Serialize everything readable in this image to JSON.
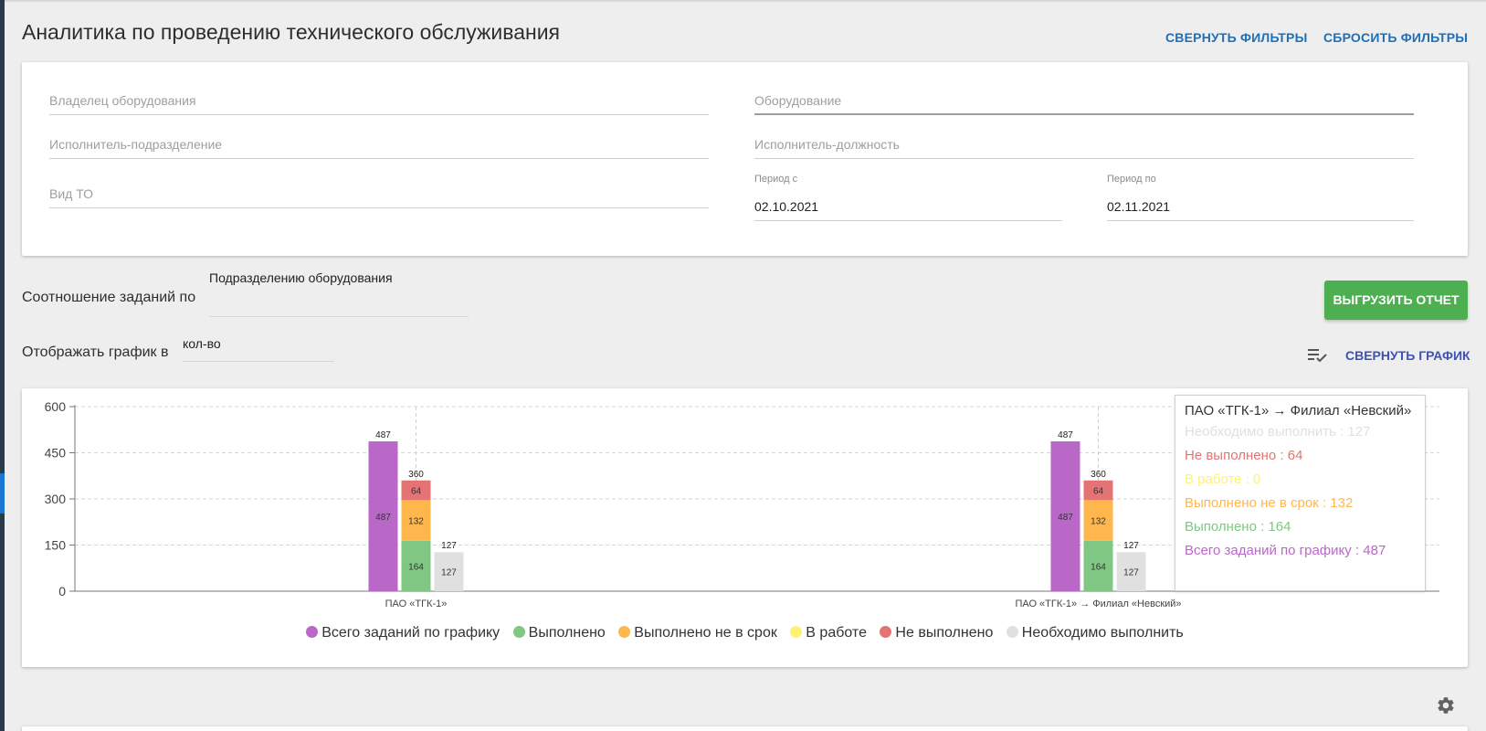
{
  "header": {
    "title": "Аналитика по проведению технического обслуживания",
    "collapse_filters": "СВЕРНУТЬ ФИЛЬТРЫ",
    "reset_filters": "СБРОСИТЬ ФИЛЬТРЫ"
  },
  "filters": {
    "owner_placeholder": "Владелец оборудования",
    "equipment_placeholder": "Оборудование",
    "executor_dept_placeholder": "Исполнитель-подразделение",
    "executor_pos_placeholder": "Исполнитель-должность",
    "type_placeholder": "Вид ТО",
    "period_from_label": "Период с",
    "period_from_value": "02.10.2021",
    "period_to_label": "Период по",
    "period_to_value": "02.11.2021"
  },
  "controls": {
    "ratio_label": "Соотношение заданий по",
    "ratio_value": "Подразделению оборудования",
    "display_label": "Отображать график в",
    "display_value": "кол-во",
    "export_button": "ВЫГРУЗИТЬ ОТЧЕТ",
    "collapse_chart": "СВЕРНУТЬ ГРАФИК",
    "list_check_icon": "playlist-check-icon",
    "settings_icon": "gear-icon"
  },
  "colors": {
    "total": "#ba68c8",
    "done": "#81c784",
    "late": "#ffb74d",
    "in_work": "#fff176",
    "not_done": "#e57373",
    "required": "#e0e0e0",
    "accent_green": "#4caf50",
    "link_blue": "#1e6fb8"
  },
  "tooltip": {
    "title": "ПАО «ТГК-1» → Филиал «Невский»",
    "rows": [
      {
        "text": "Необходимо выполнить : 127",
        "color": "#e0e0e0"
      },
      {
        "text": "Не выполнено : 64",
        "color": "#e57373"
      },
      {
        "text": "В работе : 0",
        "color": "#fff176"
      },
      {
        "text": "Выполнено не в срок : 132",
        "color": "#ffb74d"
      },
      {
        "text": "Выполнено : 164",
        "color": "#81c784"
      },
      {
        "text": "Всего заданий по графику : 487",
        "color": "#ba68c8"
      }
    ]
  },
  "chart_data": {
    "type": "bar",
    "categories": [
      "ПАО «ТГК-1»",
      "ПАО «ТГК-1» → Филиал «Невский»"
    ],
    "ylim": [
      0,
      600
    ],
    "yticks": [
      0,
      150,
      300,
      450,
      600
    ],
    "grid": true,
    "legend_position": "bottom",
    "stacks": [
      {
        "id": "total",
        "series": [
          "total"
        ],
        "totals": [
          487,
          487
        ]
      },
      {
        "id": "work",
        "series": [
          "done",
          "late",
          "in_work",
          "not_done"
        ],
        "totals": [
          360,
          360
        ]
      },
      {
        "id": "required",
        "series": [
          "required"
        ],
        "totals": [
          127,
          127
        ]
      }
    ],
    "series": [
      {
        "key": "total",
        "name": "Всего заданий по графику",
        "color": "#ba68c8",
        "values": [
          487,
          487
        ]
      },
      {
        "key": "done",
        "name": "Выполнено",
        "color": "#81c784",
        "values": [
          164,
          164
        ]
      },
      {
        "key": "late",
        "name": "Выполнено не в срок",
        "color": "#ffb74d",
        "values": [
          132,
          132
        ]
      },
      {
        "key": "in_work",
        "name": "В работе",
        "color": "#fff176",
        "values": [
          0,
          0
        ]
      },
      {
        "key": "not_done",
        "name": "Не выполнено",
        "color": "#e57373",
        "values": [
          64,
          64
        ]
      },
      {
        "key": "required",
        "name": "Необходимо выполнить",
        "color": "#e0e0e0",
        "values": [
          127,
          127
        ]
      }
    ]
  }
}
